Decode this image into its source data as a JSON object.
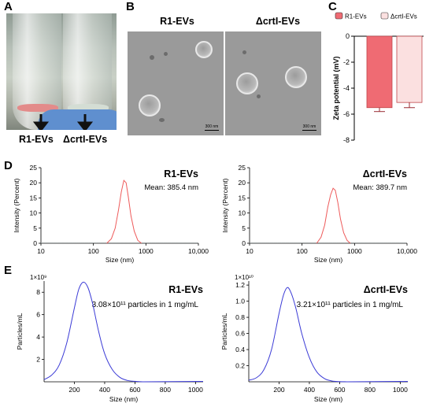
{
  "panels": {
    "a": "A",
    "b": "B",
    "c": "C",
    "d": "D",
    "e": "E"
  },
  "panel_a": {
    "label_left": "R1-EVs",
    "label_right": "ΔcrtI-EVs"
  },
  "panel_b": {
    "title_left": "R1-EVs",
    "title_right": "ΔcrtI-EVs",
    "scale_left": "300 nm",
    "scale_right": "300 nm"
  },
  "colors": {
    "r1_fill": "#ef6b73",
    "crti_fill": "#fbe0e0",
    "dls_line": "#ee5a5a",
    "nta_line": "#3b3bd6"
  },
  "chart_data": [
    {
      "id": "zeta",
      "type": "bar",
      "categories": [
        "R1-EVs",
        "ΔcrtI-EVs"
      ],
      "values": [
        -5.5,
        -5.1
      ],
      "errors": [
        0.3,
        0.4
      ],
      "ylabel": "Zeta potential  (mV)",
      "ylim": [
        -8,
        0
      ],
      "yticks": [
        "0",
        "-2",
        "-4",
        "-6",
        "-8"
      ],
      "legend": [
        "R1-EVs",
        "ΔcrtI-EVs"
      ],
      "legend_placement": "top"
    },
    {
      "id": "dls-r1",
      "type": "line",
      "title": "R1-EVs",
      "annotation": "Mean: 385.4 nm",
      "xlabel": "Size (nm)",
      "ylabel": "Intensity (Percent)",
      "xscale": "log",
      "xlim": [
        10,
        10000
      ],
      "ylim": [
        0,
        25
      ],
      "xticks": [
        "10",
        "100",
        "1000",
        "10,000"
      ],
      "yticks": [
        "0",
        "5",
        "10",
        "15",
        "20",
        "25"
      ],
      "x": [
        180,
        220,
        260,
        300,
        340,
        380,
        420,
        460,
        520,
        600,
        700,
        820
      ],
      "y": [
        0,
        1.5,
        5,
        11,
        17,
        20.8,
        20,
        15.5,
        9,
        4,
        1,
        0
      ]
    },
    {
      "id": "dls-crti",
      "type": "line",
      "title": "ΔcrtI-EVs",
      "annotation": "Mean: 389.7 nm",
      "xlabel": "Size (nm)",
      "ylabel": "Intensity (Percent)",
      "xscale": "log",
      "xlim": [
        10,
        10000
      ],
      "ylim": [
        0,
        25
      ],
      "xticks": [
        "10",
        "100",
        "1000",
        "10,000"
      ],
      "yticks": [
        "0",
        "5",
        "10",
        "15",
        "20",
        "25"
      ],
      "x": [
        190,
        230,
        270,
        310,
        350,
        390,
        430,
        480,
        540,
        620,
        720,
        830
      ],
      "y": [
        0,
        2,
        6,
        12,
        16,
        18.2,
        17.5,
        13.5,
        8,
        3.5,
        1,
        0
      ]
    },
    {
      "id": "nta-r1",
      "type": "line",
      "title": "R1-EVs",
      "annotation": "3.08×10¹¹ particles in 1 mg/mL",
      "exponent": "1×10⁹",
      "xlabel": "Size (nm)",
      "ylabel": "Particles/mL",
      "xlim": [
        0,
        1050
      ],
      "ylim": [
        0,
        9
      ],
      "xticks": [
        "200",
        "400",
        "600",
        "800",
        "1000"
      ],
      "yticks": [
        "2",
        "4",
        "6",
        "8"
      ],
      "x": [
        0,
        50,
        100,
        150,
        200,
        230,
        260,
        290,
        320,
        360,
        400,
        450,
        500,
        550,
        600,
        650
      ],
      "y": [
        0.2,
        0.6,
        1.5,
        3.5,
        6.6,
        8.3,
        8.9,
        8.4,
        7.0,
        4.5,
        2.5,
        1.1,
        0.4,
        0.12,
        0.04,
        0
      ]
    },
    {
      "id": "nta-crti",
      "type": "line",
      "title": "ΔcrtI-EVs",
      "annotation": "3.21×10¹¹ particles in 1 mg/mL",
      "exponent": "1×10¹⁰",
      "xlabel": "Size (nm)",
      "ylabel": "Particles/mL",
      "xlim": [
        0,
        1050
      ],
      "ylim": [
        0,
        1.25
      ],
      "xticks": [
        "200",
        "400",
        "600",
        "800",
        "1000"
      ],
      "yticks": [
        "0.2",
        "0.4",
        "0.6",
        "0.8",
        "1.0",
        "1.2"
      ],
      "x": [
        0,
        50,
        100,
        150,
        200,
        230,
        255,
        280,
        310,
        350,
        400,
        450,
        500,
        550,
        600,
        650
      ],
      "y": [
        0.02,
        0.05,
        0.15,
        0.4,
        0.85,
        1.08,
        1.17,
        1.1,
        0.92,
        0.6,
        0.3,
        0.12,
        0.04,
        0.01,
        0.003,
        0
      ]
    }
  ]
}
